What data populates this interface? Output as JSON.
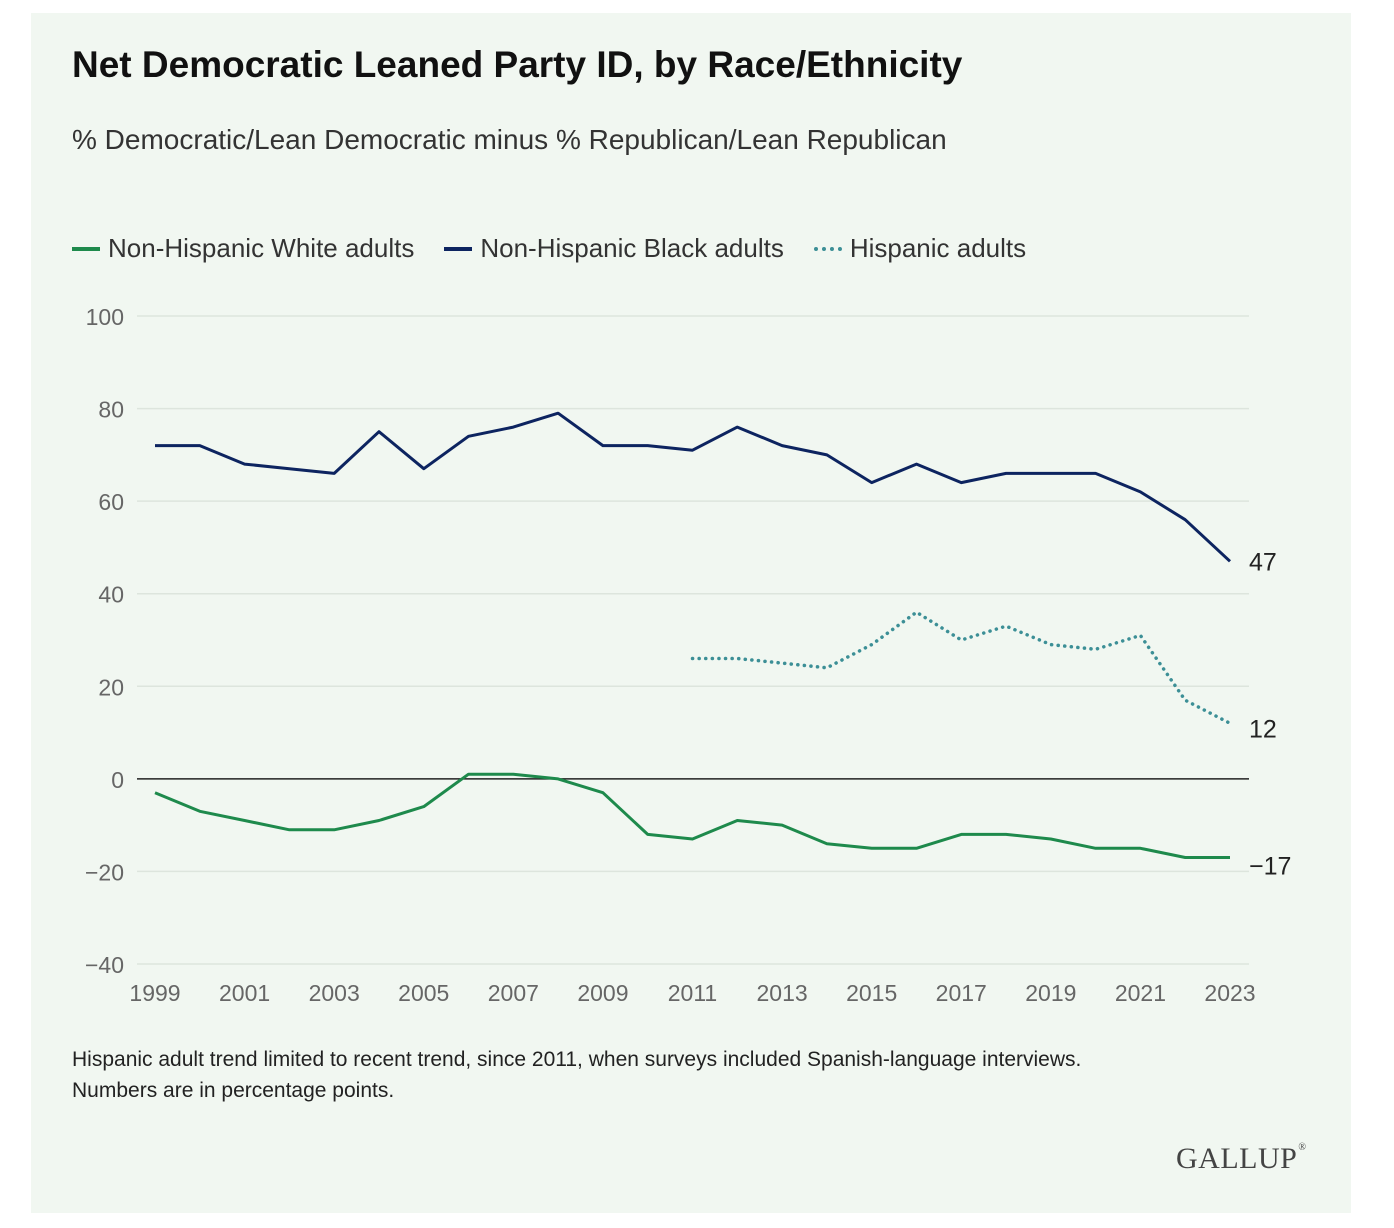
{
  "colors": {
    "background": "#f1f7f1",
    "white": "#1e8a4c",
    "black": "#0d2460",
    "hispanic": "#3c8f96",
    "grid": "#dde5dd",
    "zero_line": "#222222"
  },
  "footnote": {
    "line1": "Hispanic adult trend limited to recent trend, since 2011, when surveys included Spanish-language interviews.",
    "line2": "Numbers are in percentage points."
  },
  "brand": {
    "logo_text": "GALLUP",
    "registered_mark": "®"
  },
  "chart_data": {
    "type": "line",
    "title": "Net Democratic Leaned Party ID, by Race/Ethnicity",
    "subtitle": "% Democratic/Lean Democratic minus % Republican/Lean Republican",
    "xlabel": "",
    "ylabel": "",
    "x": [
      1999,
      2000,
      2001,
      2002,
      2003,
      2004,
      2005,
      2006,
      2007,
      2008,
      2009,
      2010,
      2011,
      2012,
      2013,
      2014,
      2015,
      2016,
      2017,
      2018,
      2019,
      2020,
      2021,
      2022,
      2023
    ],
    "xlim": [
      1999,
      2023
    ],
    "ylim": [
      -40,
      100
    ],
    "x_ticks": [
      1999,
      2001,
      2003,
      2005,
      2007,
      2009,
      2011,
      2013,
      2015,
      2017,
      2019,
      2021,
      2023
    ],
    "x_tick_labels": [
      "1999",
      "2001",
      "2003",
      "2005",
      "2007",
      "2009",
      "2011",
      "2013",
      "2015",
      "2017",
      "2019",
      "2021",
      "2023"
    ],
    "y_ticks": [
      -40,
      -20,
      0,
      20,
      40,
      60,
      80,
      100
    ],
    "y_tick_labels": [
      "−40",
      "−20",
      "0",
      "20",
      "40",
      "60",
      "80",
      "100"
    ],
    "grid": true,
    "legend_position": "top-left",
    "series": [
      {
        "name": "Non-Hispanic White adults",
        "style": "solid",
        "color": "#1e8a4c",
        "values": [
          -3,
          -7,
          -9,
          -11,
          -11,
          -9,
          -6,
          1,
          1,
          0,
          -3,
          -12,
          -13,
          -9,
          -10,
          -14,
          -15,
          -15,
          -12,
          -12,
          -13,
          -15,
          -15,
          -17,
          -17
        ],
        "end_label": "−17"
      },
      {
        "name": "Non-Hispanic Black adults",
        "style": "solid",
        "color": "#0d2460",
        "values": [
          72,
          72,
          68,
          67,
          66,
          75,
          67,
          74,
          76,
          79,
          72,
          72,
          71,
          76,
          72,
          70,
          64,
          68,
          64,
          66,
          66,
          66,
          62,
          56,
          47
        ],
        "end_label": "47"
      },
      {
        "name": "Hispanic adults",
        "style": "dotted",
        "color": "#3c8f96",
        "values": [
          null,
          null,
          null,
          null,
          null,
          null,
          null,
          null,
          null,
          null,
          null,
          null,
          26,
          26,
          25,
          24,
          29,
          36,
          30,
          33,
          29,
          28,
          31,
          17,
          12
        ],
        "end_label": "12"
      }
    ]
  }
}
